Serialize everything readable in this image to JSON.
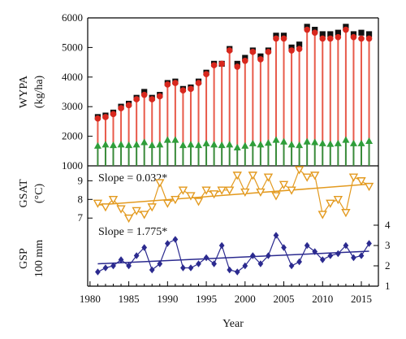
{
  "colors": {
    "wypa_stem": "#e85a4a",
    "wypa_square": "#111111",
    "wypa_circle": "#d8281e",
    "baseline_stem": "#3a8a3a",
    "baseline_triangle": "#2f9e3a",
    "gsat": "#e39a1f",
    "gsp": "#2b2a8f"
  },
  "chart_data": [
    {
      "id": "wypa",
      "type": "line",
      "ylabel_line1": "WYPA",
      "ylabel_line2": "(kg/ha)",
      "ylim": [
        1000,
        6000
      ],
      "yticks": [
        "1000",
        "2000",
        "3000",
        "4000",
        "5000",
        "6000"
      ],
      "x": [
        1981,
        1982,
        1983,
        1984,
        1985,
        1986,
        1987,
        1988,
        1989,
        1990,
        1991,
        1992,
        1993,
        1994,
        1995,
        1996,
        1997,
        1998,
        1999,
        2000,
        2001,
        2002,
        2003,
        2004,
        2005,
        2006,
        2007,
        2008,
        2009,
        2010,
        2011,
        2012,
        2013,
        2014,
        2015,
        2016
      ],
      "series": [
        {
          "marker": "square",
          "values": [
            2650,
            2700,
            2800,
            3000,
            3100,
            3300,
            3500,
            3300,
            3400,
            3800,
            3850,
            3600,
            3650,
            3850,
            4150,
            4450,
            4450,
            4950,
            4450,
            4650,
            4900,
            4700,
            4900,
            5400,
            5400,
            5000,
            5100,
            5700,
            5600,
            5450,
            5450,
            5500,
            5700,
            5450,
            5500,
            5450
          ]
        },
        {
          "marker": "circle",
          "values": [
            2600,
            2650,
            2750,
            2950,
            3050,
            3250,
            3400,
            3250,
            3350,
            3750,
            3800,
            3550,
            3600,
            3800,
            4100,
            4400,
            4450,
            4900,
            4350,
            4550,
            4850,
            4600,
            4850,
            5300,
            5300,
            4900,
            4950,
            5600,
            5500,
            5300,
            5300,
            5350,
            5600,
            5350,
            5300,
            5300
          ]
        },
        {
          "marker": "triangle",
          "values": [
            1680,
            1720,
            1700,
            1720,
            1700,
            1720,
            1800,
            1700,
            1720,
            1880,
            1880,
            1700,
            1720,
            1700,
            1760,
            1720,
            1700,
            1720,
            1620,
            1680,
            1760,
            1720,
            1780,
            1880,
            1820,
            1720,
            1700,
            1820,
            1800,
            1760,
            1740,
            1760,
            1880,
            1760,
            1760,
            1840
          ]
        }
      ]
    },
    {
      "id": "gsat",
      "type": "line",
      "ylabel_line1": "GSAT",
      "ylabel_line2": "(°C)",
      "ylim": [
        6.4,
        9.8
      ],
      "yticks": [
        "7",
        "8",
        "9"
      ],
      "annotation": "Slope = 0.032*",
      "x": [
        1981,
        1982,
        1983,
        1984,
        1985,
        1986,
        1987,
        1988,
        1989,
        1990,
        1991,
        1992,
        1993,
        1994,
        1995,
        1996,
        1997,
        1998,
        1999,
        2000,
        2001,
        2002,
        2003,
        2004,
        2005,
        2006,
        2007,
        2008,
        2009,
        2010,
        2011,
        2012,
        2013,
        2014,
        2015,
        2016
      ],
      "series": [
        {
          "marker": "triangle-down",
          "values": [
            7.8,
            7.6,
            8.0,
            7.5,
            7.0,
            7.4,
            7.2,
            7.6,
            8.9,
            7.8,
            8.0,
            8.5,
            8.2,
            7.9,
            8.5,
            8.3,
            8.5,
            8.5,
            9.3,
            8.4,
            9.3,
            8.4,
            9.2,
            8.2,
            8.8,
            8.5,
            9.6,
            9.2,
            9.3,
            7.2,
            7.8,
            8.0,
            7.3,
            9.2,
            9.0,
            8.7
          ]
        }
      ],
      "trend": {
        "slope": 0.032,
        "intercept_1981": 7.7
      }
    },
    {
      "id": "gsp",
      "type": "line",
      "ylabel_line1": "GSP",
      "ylabel_line2": "100 mm",
      "ylim": [
        1,
        4.6
      ],
      "yticks": [
        "1",
        "2",
        "3",
        "4"
      ],
      "annotation": "Slope = 1.775*",
      "x": [
        1981,
        1982,
        1983,
        1984,
        1985,
        1986,
        1987,
        1988,
        1989,
        1990,
        1991,
        1992,
        1993,
        1994,
        1995,
        1996,
        1997,
        1998,
        1999,
        2000,
        2001,
        2002,
        2003,
        2004,
        2005,
        2006,
        2007,
        2008,
        2009,
        2010,
        2011,
        2012,
        2013,
        2014,
        2015,
        2016
      ],
      "series": [
        {
          "marker": "diamond",
          "values": [
            1.7,
            1.9,
            2.0,
            2.3,
            2.0,
            2.5,
            2.9,
            1.8,
            2.1,
            3.1,
            3.3,
            1.9,
            1.9,
            2.1,
            2.4,
            2.1,
            3.0,
            1.8,
            1.7,
            2.0,
            2.5,
            2.1,
            2.5,
            3.5,
            2.9,
            2.0,
            2.2,
            3.0,
            2.7,
            2.3,
            2.5,
            2.6,
            3.0,
            2.4,
            2.5,
            3.1
          ]
        }
      ],
      "trend": {
        "slope": 0.01775,
        "intercept_1981": 2.1
      }
    }
  ],
  "x_axis": {
    "label": "Year",
    "ticks": [
      "1980",
      "1985",
      "1990",
      "1995",
      "2000",
      "2005",
      "2010",
      "2015"
    ],
    "range": [
      1979.7,
      2017.2
    ]
  }
}
